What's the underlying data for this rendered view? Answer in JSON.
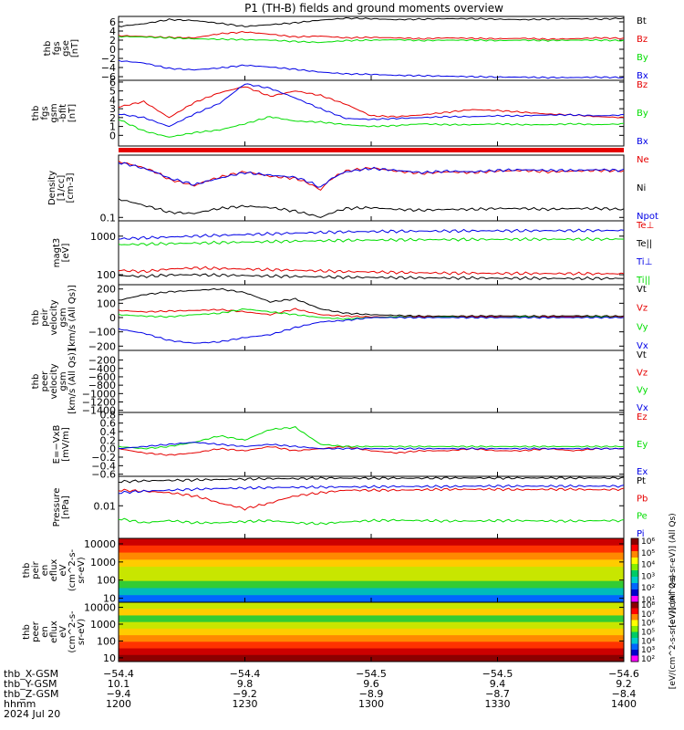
{
  "title": "P1 (TH-B) fields and ground moments overview",
  "colors": {
    "black": "#000000",
    "red": "#e60000",
    "green": "#00dd00",
    "blue": "#0000e6"
  },
  "chart_data": [
    {
      "type": "line",
      "ylabel": [
        "thb",
        "fgs",
        "gse",
        "[nT]"
      ],
      "ylim": [
        -6.8,
        7.2
      ],
      "ticks": [
        "6",
        "4",
        "2",
        "0",
        "−2",
        "−4",
        "−6"
      ],
      "legend": [
        "Bt",
        "Bz",
        "By",
        "Bx"
      ],
      "series": [
        {
          "name": "Bt",
          "color": "black",
          "values": [
            5.0,
            5.6,
            6.5,
            6.3,
            5.7,
            5.0,
            5.4,
            5.8,
            6.4,
            6.8,
            6.7,
            6.5,
            6.6,
            6.7,
            6.7,
            6.6,
            6.5,
            6.6,
            6.7,
            6.6,
            6.8
          ]
        },
        {
          "name": "Bz",
          "color": "red",
          "values": [
            3.0,
            2.8,
            2.6,
            2.5,
            3.4,
            3.8,
            3.3,
            2.7,
            2.9,
            2.5,
            2.6,
            2.5,
            2.3,
            2.5,
            2.4,
            2.3,
            2.4,
            2.2,
            2.3,
            2.5,
            2.4
          ]
        },
        {
          "name": "By",
          "color": "green",
          "values": [
            2.8,
            2.7,
            2.5,
            2.3,
            2.2,
            2.1,
            2.0,
            1.7,
            1.5,
            1.9,
            2.0,
            2.1,
            1.9,
            2.0,
            2.0,
            1.9,
            2.0,
            1.9,
            2.0,
            2.0,
            1.9
          ]
        },
        {
          "name": "Bx",
          "color": "blue",
          "values": [
            -2.5,
            -3.0,
            -4.2,
            -4.5,
            -4.1,
            -3.5,
            -3.9,
            -4.4,
            -5.0,
            -5.4,
            -5.5,
            -5.7,
            -5.8,
            -5.9,
            -6.0,
            -6.1,
            -6.1,
            -6.2,
            -6.2,
            -6.1,
            -6.2
          ]
        }
      ]
    },
    {
      "type": "line",
      "ylabel": [
        "thb",
        "fgs",
        "gsm",
        "-bfit",
        "[nT]"
      ],
      "ylim": [
        -1.2,
        6.2
      ],
      "ticks": [
        "6",
        "5",
        "4",
        "3",
        "2",
        "1",
        "0"
      ],
      "legend": [
        "Bz",
        "By",
        "Bx"
      ],
      "series": [
        {
          "name": "Bz",
          "color": "red",
          "values": [
            3.2,
            3.8,
            2.0,
            3.7,
            4.8,
            5.5,
            4.4,
            5.0,
            4.5,
            3.5,
            2.2,
            2.1,
            2.3,
            2.6,
            2.9,
            2.8,
            2.6,
            2.4,
            2.3,
            2.1,
            2.0
          ]
        },
        {
          "name": "By",
          "color": "green",
          "values": [
            1.8,
            0.5,
            -0.2,
            0.3,
            0.6,
            1.3,
            2.1,
            1.6,
            1.5,
            1.2,
            1.0,
            1.1,
            1.3,
            1.2,
            1.2,
            1.3,
            1.2,
            1.2,
            1.3,
            1.2,
            1.3
          ]
        },
        {
          "name": "Bx",
          "color": "blue",
          "values": [
            2.4,
            2.0,
            1.0,
            2.4,
            3.6,
            5.8,
            5.3,
            4.2,
            3.0,
            1.9,
            1.8,
            1.9,
            2.0,
            2.1,
            2.1,
            2.2,
            2.2,
            2.3,
            2.3,
            2.2,
            2.3
          ]
        }
      ]
    },
    {
      "type": "line",
      "ylabel": [
        "Density",
        "[1/cc]",
        "[cm-3]"
      ],
      "scale": "log",
      "ylim": [
        0.08,
        6
      ],
      "ticks": [
        "0.1"
      ],
      "legend": [
        "Ne",
        "Ni",
        "Npot"
      ],
      "series": [
        {
          "name": "Ne",
          "color": "red",
          "values": [
            3.9,
            2.6,
            1.2,
            0.8,
            1.4,
            2.0,
            1.5,
            1.3,
            0.6,
            2.1,
            2.6,
            2.1,
            1.8,
            2.0,
            1.9,
            2.1,
            2.2,
            2.0,
            2.1,
            2.2,
            2.1
          ]
        },
        {
          "name": "Ni",
          "color": "black",
          "values": [
            0.33,
            0.22,
            0.14,
            0.13,
            0.18,
            0.21,
            0.19,
            0.15,
            0.1,
            0.18,
            0.19,
            0.17,
            0.16,
            0.17,
            0.17,
            0.18,
            0.18,
            0.17,
            0.18,
            0.18,
            0.17
          ]
        },
        {
          "name": "Npot",
          "color": "blue",
          "values": [
            3.7,
            2.5,
            1.3,
            0.85,
            1.3,
            1.9,
            1.6,
            1.4,
            0.7,
            2.0,
            2.5,
            2.2,
            1.9,
            2.1,
            2.0,
            2.2,
            2.3,
            2.2,
            2.2,
            2.3,
            2.2
          ]
        }
      ]
    },
    {
      "type": "line",
      "ylabel": [
        "magt3",
        "[eV]"
      ],
      "scale": "log",
      "ylim": [
        55,
        2500
      ],
      "ticks": [
        "1000",
        "100"
      ],
      "legend": [
        "Te⊥",
        "Te||",
        "Ti⊥",
        "Ti||"
      ],
      "series": [
        {
          "name": "Te⊥",
          "color": "red",
          "values": [
            130,
            120,
            140,
            150,
            145,
            140,
            135,
            130,
            125,
            120,
            118,
            115,
            112,
            110,
            110,
            108,
            108,
            107,
            107,
            106,
            106
          ]
        },
        {
          "name": "Te||",
          "color": "black",
          "values": [
            95,
            90,
            98,
            100,
            97,
            95,
            92,
            90,
            88,
            86,
            85,
            84,
            83,
            82,
            82,
            81,
            81,
            80,
            80,
            80,
            80
          ]
        },
        {
          "name": "Ti⊥",
          "color": "blue",
          "values": [
            850,
            900,
            950,
            1000,
            1050,
            1100,
            1150,
            1200,
            1250,
            1300,
            1320,
            1340,
            1350,
            1360,
            1370,
            1380,
            1380,
            1390,
            1390,
            1400,
            1400
          ]
        },
        {
          "name": "Ti||",
          "color": "green",
          "values": [
            600,
            620,
            640,
            660,
            680,
            700,
            720,
            740,
            760,
            780,
            790,
            800,
            810,
            815,
            820,
            825,
            830,
            830,
            835,
            835,
            840
          ]
        }
      ]
    },
    {
      "type": "line",
      "ylabel": [
        "thb",
        "peir",
        "velocity",
        "gsm",
        "[km/s (All Qs)]"
      ],
      "ylim": [
        -230,
        230
      ],
      "ticks": [
        "200",
        "100",
        "0",
        "−100",
        "−200"
      ],
      "legend": [
        "Vt",
        "Vz",
        "Vy",
        "Vx"
      ],
      "series": [
        {
          "name": "Vt",
          "color": "black",
          "values": [
            120,
            160,
            180,
            190,
            200,
            175,
            110,
            130,
            60,
            30,
            20,
            15,
            10,
            10,
            10,
            12,
            10,
            10,
            12,
            10,
            10
          ]
        },
        {
          "name": "Vz",
          "color": "red",
          "values": [
            50,
            40,
            45,
            50,
            55,
            40,
            20,
            60,
            20,
            10,
            5,
            5,
            5,
            5,
            5,
            5,
            5,
            5,
            5,
            5,
            5
          ]
        },
        {
          "name": "Vy",
          "color": "green",
          "values": [
            20,
            10,
            5,
            20,
            30,
            60,
            40,
            20,
            0,
            -10,
            0,
            5,
            0,
            5,
            0,
            0,
            5,
            0,
            0,
            5,
            0
          ]
        },
        {
          "name": "Vx",
          "color": "blue",
          "values": [
            -80,
            -110,
            -160,
            -180,
            -170,
            -140,
            -120,
            -70,
            -30,
            -20,
            0,
            0,
            0,
            0,
            0,
            0,
            0,
            0,
            0,
            0,
            0
          ]
        }
      ]
    },
    {
      "type": "line",
      "ylabel": [
        "thb",
        "peer",
        "velocity",
        "gsm",
        "[km/s (All Qs)]"
      ],
      "ylim": [
        -1450,
        30
      ],
      "ticks": [
        "−200",
        "−400",
        "−600",
        "−800",
        "−1000",
        "−1200",
        "−1400"
      ],
      "legend": [
        "Vt",
        "Vz",
        "Vy",
        "Vx"
      ],
      "series": []
    },
    {
      "type": "line",
      "ylabel": [
        "E=−VxB",
        "[mV/m]"
      ],
      "ylim": [
        -0.65,
        0.85
      ],
      "ticks": [
        "0.8",
        "0.6",
        "0.4",
        "0.2",
        "0.0",
        "−0.2",
        "−0.4",
        "−0.6"
      ],
      "legend": [
        "Ez",
        "Ey",
        "Ex"
      ],
      "series": [
        {
          "name": "Ez",
          "color": "red",
          "values": [
            0.0,
            -0.1,
            -0.15,
            -0.1,
            0.0,
            -0.05,
            0.05,
            -0.05,
            0.0,
            0.05,
            -0.05,
            -0.1,
            -0.05,
            -0.05,
            0.0,
            -0.05,
            -0.05,
            0.0,
            -0.05,
            0.0,
            0.0
          ]
        },
        {
          "name": "Ey",
          "color": "green",
          "values": [
            0.05,
            0.0,
            0.05,
            0.15,
            0.3,
            0.2,
            0.45,
            0.5,
            0.1,
            0.05,
            0.05,
            0.05,
            0.05,
            0.05,
            0.05,
            0.05,
            0.05,
            0.05,
            0.05,
            0.05,
            0.05
          ]
        },
        {
          "name": "Ex",
          "color": "blue",
          "values": [
            0.0,
            0.05,
            0.1,
            0.15,
            0.1,
            0.05,
            0.1,
            0.05,
            0.0,
            0.0,
            0.0,
            0.0,
            0.0,
            0.0,
            0.0,
            0.0,
            0.0,
            0.0,
            0.0,
            0.0,
            0.0
          ]
        }
      ]
    },
    {
      "type": "line",
      "ylabel": [
        "Pressure",
        "[nPa]"
      ],
      "scale": "log",
      "ylim": [
        0.001,
        0.08
      ],
      "ticks": [
        "0.01"
      ],
      "legend": [
        "Pt",
        "Pb",
        "Pe",
        "Pi"
      ],
      "series": [
        {
          "name": "Pt",
          "color": "black",
          "values": [
            0.055,
            0.058,
            0.06,
            0.062,
            0.064,
            0.066,
            0.068,
            0.068,
            0.07,
            0.07,
            0.07,
            0.07,
            0.07,
            0.071,
            0.071,
            0.071,
            0.071,
            0.071,
            0.071,
            0.071,
            0.071
          ]
        },
        {
          "name": "Pb",
          "color": "red",
          "values": [
            0.03,
            0.028,
            0.025,
            0.02,
            0.012,
            0.008,
            0.012,
            0.02,
            0.025,
            0.03,
            0.03,
            0.03,
            0.031,
            0.032,
            0.032,
            0.032,
            0.031,
            0.032,
            0.032,
            0.031,
            0.032
          ]
        },
        {
          "name": "Pe",
          "color": "green",
          "values": [
            0.004,
            0.003,
            0.0035,
            0.003,
            0.003,
            0.0033,
            0.0035,
            0.003,
            0.0028,
            0.0032,
            0.0035,
            0.0036,
            0.0035,
            0.0034,
            0.0034,
            0.0035,
            0.0035,
            0.0034,
            0.0034,
            0.0035,
            0.0035
          ]
        },
        {
          "name": "Pi",
          "color": "blue",
          "values": [
            0.025,
            0.028,
            0.03,
            0.032,
            0.034,
            0.035,
            0.036,
            0.037,
            0.037,
            0.038,
            0.038,
            0.039,
            0.039,
            0.039,
            0.04,
            0.04,
            0.04,
            0.04,
            0.04,
            0.04,
            0.04
          ]
        }
      ]
    },
    {
      "type": "heatmap",
      "ylabel": [
        "thb",
        "peir",
        "en",
        "eflux",
        "eV",
        "(cm^2-s-",
        "sr-eV)"
      ],
      "scale": "log",
      "ylim": [
        6,
        20000
      ],
      "ticks": [
        "10000",
        "1000",
        "100",
        "10"
      ],
      "colorbar_ticks": [
        "10⁶",
        "10⁵",
        "10⁴",
        "10³",
        "10²",
        "10¹"
      ],
      "colorbar_label": "[eV/(cm^2-s-sr-eV)] (All Qs)"
    },
    {
      "type": "heatmap",
      "ylabel": [
        "thb",
        "peer",
        "en",
        "eflux",
        "eV",
        "(cm^2-s-",
        "sr-eV)"
      ],
      "scale": "log",
      "ylim": [
        6,
        20000
      ],
      "ticks": [
        "10000",
        "1000",
        "100",
        "10"
      ],
      "colorbar_ticks": [
        "10⁸",
        "10⁷",
        "10⁶",
        "10⁵",
        "10⁴",
        "10³",
        "10²"
      ],
      "colorbar_label": "[eV/(cm^2-s-sr-eV)] (All Qs)"
    }
  ],
  "xaxis": {
    "labels": [
      "thb_X-GSM",
      "thb_Y-GSM",
      "thb_Z-GSM",
      "hhmm",
      "2024 Jul 20"
    ],
    "rows": [
      [
        "−54.4",
        "−54.4",
        "−54.5",
        "−54.5",
        "−54.6"
      ],
      [
        "10.1",
        "9.8",
        "9.6",
        "9.4",
        "9.2"
      ],
      [
        "−9.4",
        "−9.2",
        "−8.9",
        "−8.7",
        "−8.4"
      ],
      [
        "1200",
        "1230",
        "1300",
        "1330",
        "1400"
      ]
    ]
  }
}
